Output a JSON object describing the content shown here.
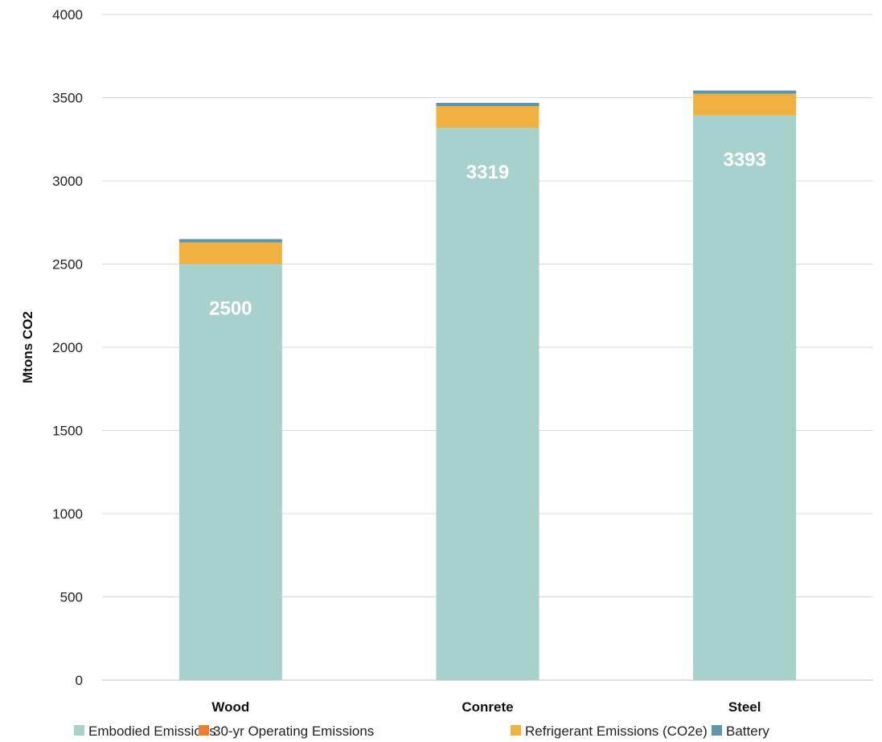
{
  "chart_data": {
    "type": "bar",
    "stacked": true,
    "title": "",
    "xlabel": "",
    "ylabel": "Mtons CO2",
    "ylim": [
      0,
      4000
    ],
    "yticks": [
      0,
      500,
      1000,
      1500,
      2000,
      2500,
      3000,
      3500,
      4000
    ],
    "categories": [
      "Wood",
      "Conrete",
      "Steel"
    ],
    "grid": true,
    "legend_position": "bottom",
    "series": [
      {
        "name": "Embodied Emissions",
        "color": "#a8d1ce",
        "values": [
          2500,
          3319,
          3393
        ],
        "data_labels": [
          "2500",
          "3319",
          "3393"
        ]
      },
      {
        "name": "30-yr Operating Emissions",
        "color": "#ed7d31",
        "values": [
          0,
          0,
          0
        ]
      },
      {
        "name": "Refrigerant Emissions (CO2e)",
        "color": "#f0b141",
        "values": [
          130,
          130,
          130
        ]
      },
      {
        "name": "Battery",
        "color": "#5b97ab",
        "values": [
          20,
          20,
          20
        ]
      }
    ]
  }
}
